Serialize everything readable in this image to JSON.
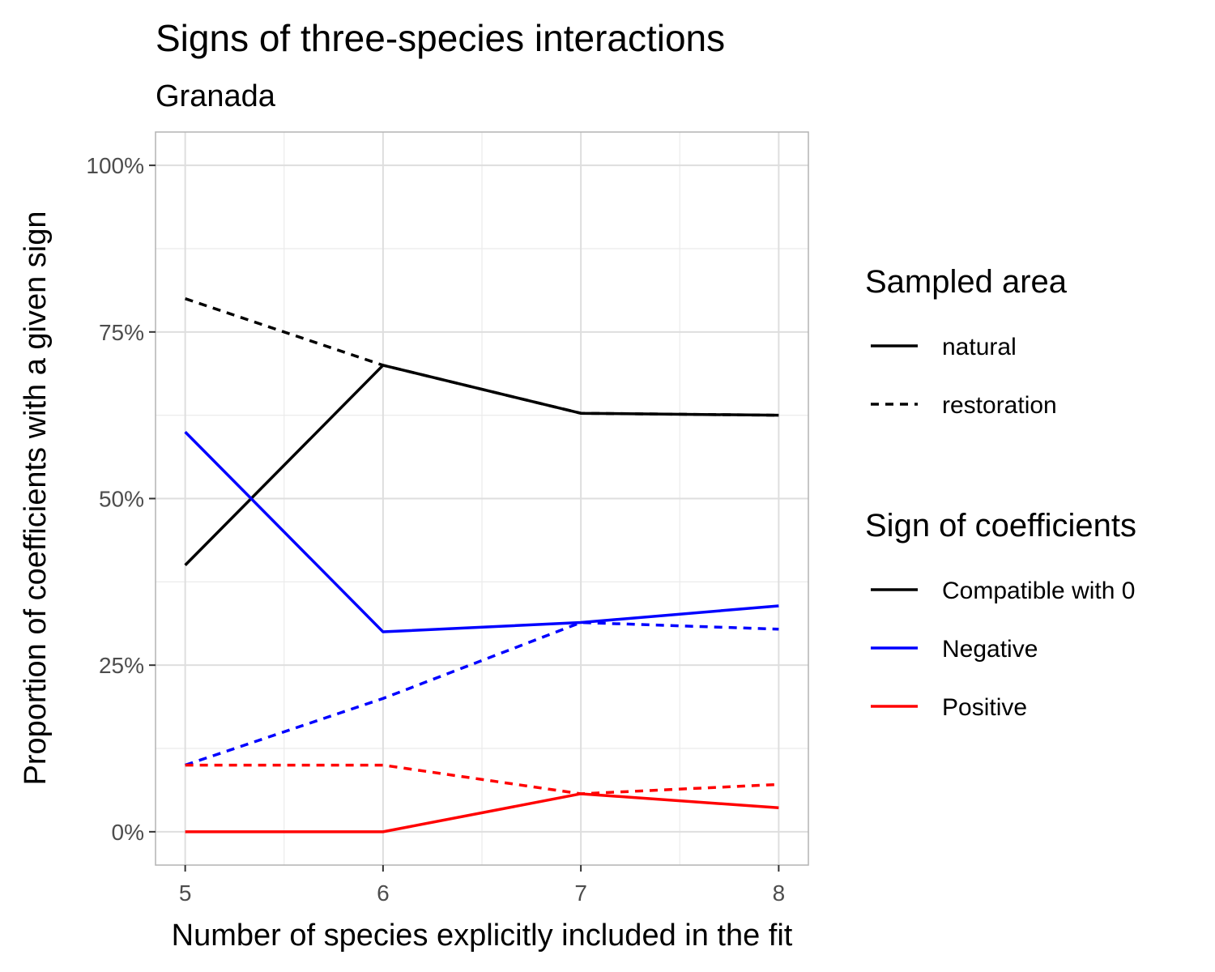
{
  "chart_data": {
    "type": "line",
    "title": "Signs of three-species interactions",
    "subtitle": "Granada",
    "xlabel": "Number of species explicitly included in the fit",
    "ylabel": "Proportion of coefficients with a given sign",
    "x": [
      5,
      6,
      7,
      8
    ],
    "xlim": [
      4.85,
      8.15
    ],
    "ylim": [
      -0.05,
      1.05
    ],
    "x_ticks": [
      5,
      6,
      7,
      8
    ],
    "x_tick_labels": [
      "5",
      "6",
      "7",
      "8"
    ],
    "y_ticks": [
      0,
      0.25,
      0.5,
      0.75,
      1.0
    ],
    "y_tick_labels": [
      "0%",
      "25%",
      "50%",
      "75%",
      "100%"
    ],
    "grid": true,
    "legend_position": "right",
    "series": [
      {
        "sign": "Compatible with 0",
        "area": "natural",
        "color": "#000000",
        "values": [
          0.4,
          0.7,
          0.628,
          0.625
        ]
      },
      {
        "sign": "Compatible with 0",
        "area": "restoration",
        "color": "#000000",
        "values": [
          0.8,
          0.7,
          0.628,
          0.625
        ]
      },
      {
        "sign": "Negative",
        "area": "natural",
        "color": "#0000ff",
        "values": [
          0.6,
          0.3,
          0.314,
          0.339
        ]
      },
      {
        "sign": "Negative",
        "area": "restoration",
        "color": "#0000ff",
        "values": [
          0.1,
          0.2,
          0.314,
          0.304
        ]
      },
      {
        "sign": "Positive",
        "area": "natural",
        "color": "#ff0000",
        "values": [
          0.0,
          0.0,
          0.057,
          0.036
        ]
      },
      {
        "sign": "Positive",
        "area": "restoration",
        "color": "#ff0000",
        "values": [
          0.1,
          0.1,
          0.057,
          0.071
        ]
      }
    ],
    "legends": [
      {
        "title": "Sampled area",
        "items": [
          {
            "label": "natural",
            "color": "#000000",
            "dash": "solid"
          },
          {
            "label": "restoration",
            "color": "#000000",
            "dash": "dashed"
          }
        ]
      },
      {
        "title": "Sign of coefficients",
        "items": [
          {
            "label": "Compatible with 0",
            "color": "#000000",
            "dash": "solid"
          },
          {
            "label": "Negative",
            "color": "#0000ff",
            "dash": "solid"
          },
          {
            "label": "Positive",
            "color": "#ff0000",
            "dash": "solid"
          }
        ]
      }
    ]
  }
}
